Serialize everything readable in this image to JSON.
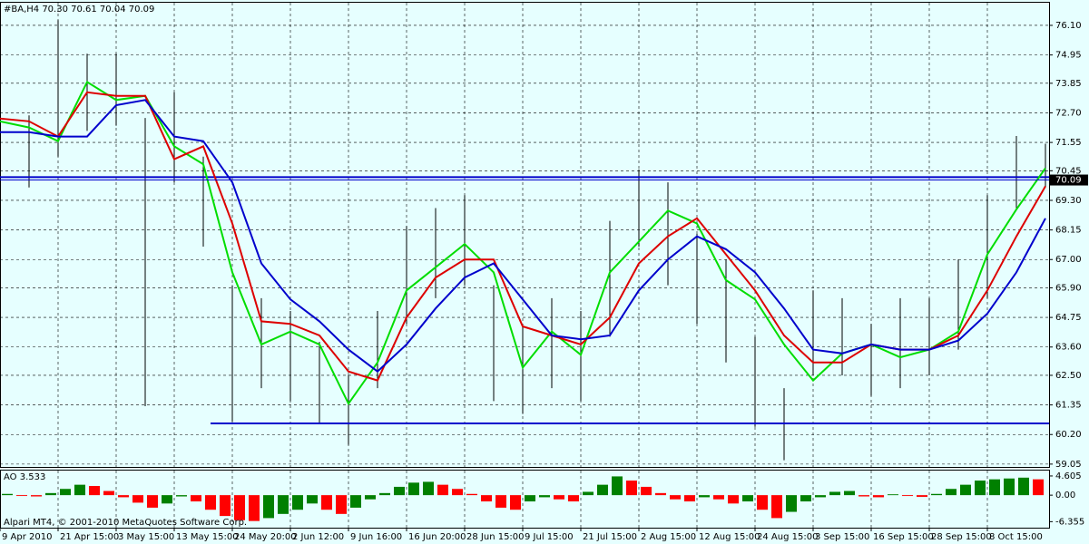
{
  "chart_data": [
    {
      "type": "line",
      "title": "#BA,H4  70.30 70.61 70.04 70.09",
      "xlim": [
        0,
        289
      ],
      "xticks": [
        {
          "value": 0,
          "label": "9 Apr 2010"
        },
        {
          "value": 16,
          "label": "21 Apr 15:00"
        },
        {
          "value": 32,
          "label": "3 May 15:00"
        },
        {
          "value": 48,
          "label": "13 May 15:00"
        },
        {
          "value": 64,
          "label": "24 May 20:00"
        },
        {
          "value": 80,
          "label": "2 Jun 12:00"
        },
        {
          "value": 96,
          "label": "9 Jun 16:00"
        },
        {
          "value": 112,
          "label": "16 Jun 20:00"
        },
        {
          "value": 128,
          "label": "28 Jun 15:00"
        },
        {
          "value": 144,
          "label": "9 Jul 15:00"
        },
        {
          "value": 160,
          "label": "21 Jul 15:00"
        },
        {
          "value": 176,
          "label": "2 Aug 15:00"
        },
        {
          "value": 192,
          "label": "12 Aug 15:00"
        },
        {
          "value": 208,
          "label": "24 Aug 15:00"
        },
        {
          "value": 224,
          "label": "3 Sep 15:00"
        },
        {
          "value": 240,
          "label": "16 Sep 15:00"
        },
        {
          "value": 256,
          "label": "28 Sep 15:00"
        },
        {
          "value": 272,
          "label": "8 Oct 15:00"
        }
      ],
      "ylim": [
        58.94,
        76.98
      ],
      "yticks": [
        {
          "value": 76.1,
          "label": "76.10"
        },
        74.95,
        73.85,
        {
          "value": 72.7,
          "label": "72.70"
        },
        71.55,
        70.45,
        {
          "value": 69.3,
          "label": "69.30"
        },
        68.15,
        {
          "value": 67.0,
          "label": "67.00"
        },
        {
          "value": 65.9,
          "label": "65.90"
        },
        64.75,
        {
          "value": 63.6,
          "label": "63.60"
        },
        {
          "value": 62.5,
          "label": "62.50"
        },
        61.35,
        {
          "value": 60.2,
          "label": "60.20"
        },
        59.05
      ],
      "grid": true,
      "x": [
        0,
        8,
        16,
        24,
        32,
        40,
        48,
        56,
        64,
        72,
        80,
        88,
        96,
        104,
        112,
        120,
        128,
        136,
        144,
        152,
        160,
        168,
        176,
        184,
        192,
        200,
        208,
        216,
        224,
        232,
        240,
        248,
        256,
        264,
        272,
        280,
        288
      ],
      "bars": {
        "color": "#000000",
        "high": [
          73.2,
          72.6,
          76.3,
          75.0,
          75.0,
          72.5,
          73.5,
          71.0,
          66.0,
          65.5,
          65.0,
          63.8,
          62.5,
          65.0,
          68.3,
          69.0,
          69.5,
          66.0,
          64.5,
          65.5,
          65.0,
          68.5,
          70.5,
          70.0,
          68.0,
          67.0,
          64.0,
          62.0,
          65.8,
          65.5,
          64.5,
          65.5,
          65.5,
          67.0,
          69.5,
          71.8,
          71.5
        ],
        "low": [
          71.5,
          69.8,
          71.0,
          72.0,
          72.2,
          61.3,
          70.0,
          67.5,
          60.7,
          62.0,
          61.5,
          60.6,
          59.8,
          62.0,
          64.5,
          65.5,
          66.0,
          61.5,
          61.0,
          62.0,
          61.5,
          64.0,
          67.5,
          66.0,
          64.5,
          63.0,
          60.5,
          59.2,
          62.5,
          62.5,
          61.7,
          62.0,
          62.5,
          63.5,
          65.5,
          69.0,
          69.8
        ]
      },
      "series": [
        {
          "color": "#00dd00",
          "values": [
            72.37,
            72.13,
            71.6,
            73.9,
            73.2,
            73.36,
            71.4,
            70.7,
            66.5,
            63.7,
            64.2,
            63.7,
            61.4,
            63.0,
            65.8,
            66.7,
            67.6,
            66.5,
            62.8,
            64.2,
            63.3,
            66.5,
            67.7,
            68.9,
            68.4,
            66.2,
            65.45,
            63.7,
            62.3,
            63.35,
            63.7,
            63.2,
            63.5,
            64.2,
            67.2,
            68.95,
            70.55
          ]
        },
        {
          "color": "#dd0000",
          "values": [
            72.48,
            72.37,
            71.78,
            73.5,
            73.36,
            73.36,
            70.9,
            71.4,
            68.4,
            64.6,
            64.5,
            64.05,
            62.65,
            62.3,
            64.75,
            66.3,
            67.0,
            67.0,
            64.4,
            64.05,
            63.7,
            64.75,
            66.85,
            67.9,
            68.6,
            67.2,
            65.8,
            64.05,
            63.0,
            63.0,
            63.7,
            63.5,
            63.5,
            64.05,
            65.8,
            67.9,
            69.85
          ]
        },
        {
          "color": "#0000cc",
          "values": [
            71.95,
            71.95,
            71.78,
            71.78,
            73.0,
            73.2,
            71.78,
            71.6,
            70.0,
            66.85,
            65.45,
            64.6,
            63.5,
            62.65,
            63.7,
            65.1,
            66.3,
            66.85,
            65.45,
            64.05,
            63.9,
            64.05,
            65.8,
            67.0,
            67.9,
            67.4,
            66.5,
            65.1,
            63.5,
            63.35,
            63.7,
            63.5,
            63.5,
            63.85,
            64.9,
            66.5,
            68.6
          ]
        }
      ],
      "hlines": [
        {
          "value": 70.2,
          "start": 0
        },
        {
          "value": 60.63,
          "start": 58
        }
      ],
      "hline_color": "#0000cc",
      "last_price": 70.09
    },
    {
      "type": "histogram",
      "title": "AO 3.533",
      "footer": "Alpari MT4, © 2001-2010 MetaQuotes Software Corp.",
      "ylim": [
        -7.8,
        5.9
      ],
      "yticks": [
        4.605,
        {
          "value": 0,
          "label": "0.00"
        },
        -6.355
      ],
      "up_color": "#008000",
      "down_color": "#ff0000",
      "x": [
        0,
        4,
        8,
        12,
        16,
        20,
        24,
        28,
        32,
        36,
        40,
        44,
        48,
        52,
        56,
        60,
        64,
        68,
        72,
        76,
        80,
        84,
        88,
        92,
        96,
        100,
        104,
        108,
        112,
        116,
        120,
        124,
        128,
        132,
        136,
        140,
        144,
        148,
        152,
        156,
        160,
        164,
        168,
        172,
        176,
        180,
        184,
        188,
        192,
        196,
        200,
        204,
        208,
        212,
        216,
        220,
        224,
        228,
        232,
        236,
        240,
        244,
        248,
        252,
        256,
        260,
        264,
        268,
        272,
        276,
        280,
        284
      ],
      "values": [
        0.3,
        -0.2,
        -0.3,
        0.5,
        1.5,
        2.5,
        2.2,
        1.0,
        -0.5,
        -1.8,
        -3.0,
        -2.0,
        -0.3,
        -1.5,
        -3.5,
        -5.0,
        -6.0,
        -6.2,
        -5.5,
        -4.5,
        -3.5,
        -2.0,
        -3.5,
        -4.5,
        -3.0,
        -1.0,
        0.5,
        2.0,
        3.0,
        3.2,
        2.5,
        1.5,
        0.3,
        -1.5,
        -3.0,
        -3.5,
        -1.5,
        -0.5,
        -1.0,
        -1.5,
        0.8,
        2.5,
        4.5,
        3.5,
        2.0,
        0.5,
        -1.0,
        -1.5,
        -0.5,
        -1.0,
        -2.0,
        -1.5,
        -3.5,
        -5.5,
        -4.0,
        -1.5,
        -0.5,
        0.8,
        1.0,
        -0.3,
        -0.5,
        0.2,
        -0.2,
        -0.4,
        0.3,
        1.5,
        2.5,
        3.5,
        3.8,
        4.0,
        4.2,
        3.8
      ]
    }
  ]
}
